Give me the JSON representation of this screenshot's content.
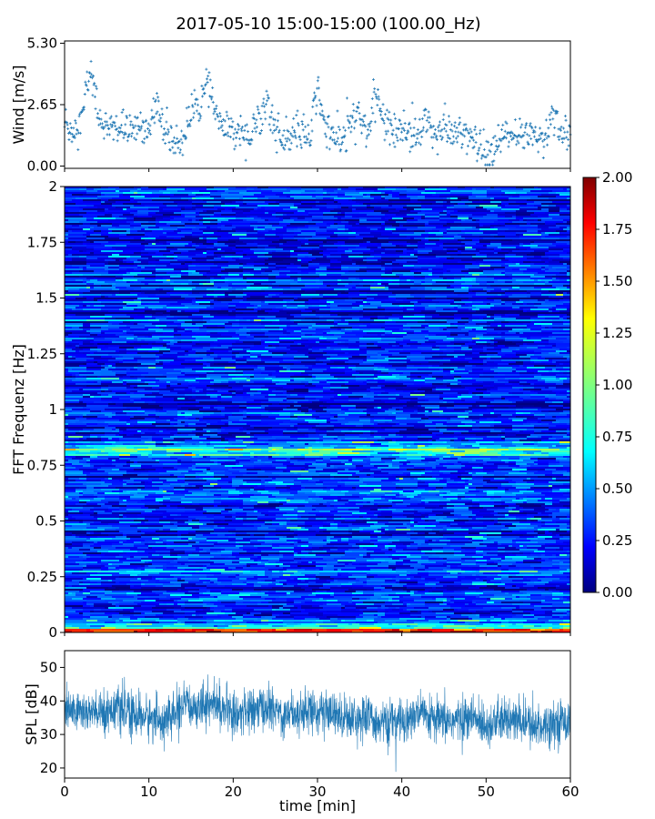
{
  "title": "2017-05-10 15:00-15:00 (100.00_Hz)",
  "chart_data": [
    {
      "id": "wind",
      "type": "scatter",
      "ylabel": "Wind [m/s]",
      "xlim": [
        0,
        60
      ],
      "ylim": [
        -0.1,
        5.4
      ],
      "yticks": [
        0.0,
        2.65,
        5.3
      ],
      "ytick_labels": [
        "0.00",
        "2.65",
        "5.30"
      ],
      "color": "#1f77b4",
      "marker": "+",
      "series": [
        {
          "x": [
            0,
            1,
            2,
            3,
            4,
            5,
            6,
            7,
            8,
            9,
            10,
            11,
            12,
            13,
            14,
            15,
            16,
            17,
            18,
            19,
            20,
            21,
            22,
            23,
            24,
            25,
            26,
            27,
            28,
            29,
            30,
            31,
            32,
            33,
            34,
            35,
            36,
            37,
            38,
            39,
            40,
            41,
            42,
            43,
            44,
            45,
            46,
            47,
            48,
            49,
            50,
            51,
            52,
            53,
            54,
            55,
            56,
            57,
            58,
            59,
            60
          ],
          "y": [
            1.8,
            1.5,
            2.0,
            4.2,
            2.3,
            1.5,
            1.7,
            1.6,
            1.4,
            1.8,
            1.6,
            2.6,
            1.3,
            1.0,
            1.1,
            2.3,
            2.6,
            3.6,
            2.1,
            1.5,
            1.5,
            1.6,
            1.2,
            2.0,
            2.8,
            1.6,
            1.0,
            1.2,
            1.6,
            1.0,
            3.4,
            1.5,
            1.3,
            1.0,
            2.0,
            2.1,
            1.4,
            3.1,
            1.8,
            1.6,
            1.6,
            1.5,
            1.3,
            2.0,
            1.3,
            1.6,
            1.4,
            1.5,
            1.2,
            0.8,
            0.4,
            0.6,
            1.3,
            1.2,
            1.2,
            1.5,
            1.3,
            1.1,
            2.5,
            1.3,
            1.4
          ]
        }
      ]
    },
    {
      "id": "spectrogram",
      "type": "heatmap",
      "ylabel": "FFT Frequenz [Hz]",
      "xlim": [
        0,
        60
      ],
      "ylim": [
        0,
        2
      ],
      "yticks": [
        0,
        0.25,
        0.5,
        0.75,
        1,
        1.25,
        1.5,
        1.75,
        2
      ],
      "ytick_labels": [
        "0",
        "0.25",
        "0.5",
        "0.75",
        "1",
        "1.25",
        "1.5",
        "1.75",
        "2"
      ],
      "colormap": "jet",
      "clim": [
        0.0,
        2.0
      ],
      "colorbar_ticks": [
        "0.00",
        "0.25",
        "0.50",
        "0.75",
        "1.00",
        "1.25",
        "1.50",
        "1.75",
        "2.00"
      ],
      "features": {
        "background_level": 0.3,
        "band_0_8_hz_level": 0.8,
        "band_0_27_hz_level": 0.5,
        "low_freq_level": 1.5
      }
    },
    {
      "id": "spl",
      "type": "line",
      "ylabel": "SPL [dB]",
      "xlabel": "time [min]",
      "xlim": [
        0,
        60
      ],
      "ylim": [
        17,
        55
      ],
      "yticks": [
        20,
        30,
        40,
        50
      ],
      "ytick_labels": [
        "20",
        "30",
        "40",
        "50"
      ],
      "xticks": [
        0,
        10,
        20,
        30,
        40,
        50,
        60
      ],
      "xtick_labels": [
        "0",
        "10",
        "20",
        "30",
        "40",
        "50",
        "60"
      ],
      "color": "#1f77b4",
      "series": [
        {
          "x": [
            0,
            2,
            4,
            6,
            8,
            10,
            12,
            14,
            16,
            18,
            20,
            22,
            24,
            26,
            28,
            30,
            32,
            34,
            36,
            38,
            40,
            42,
            44,
            46,
            48,
            50,
            52,
            54,
            56,
            58,
            60
          ],
          "y": [
            37,
            37,
            36,
            38,
            36,
            35,
            34,
            38,
            39,
            39,
            36,
            37,
            38,
            36,
            37,
            37,
            36,
            35,
            35,
            33,
            34,
            36,
            34,
            34,
            35,
            33,
            34,
            34,
            32,
            34,
            34
          ]
        }
      ]
    }
  ]
}
